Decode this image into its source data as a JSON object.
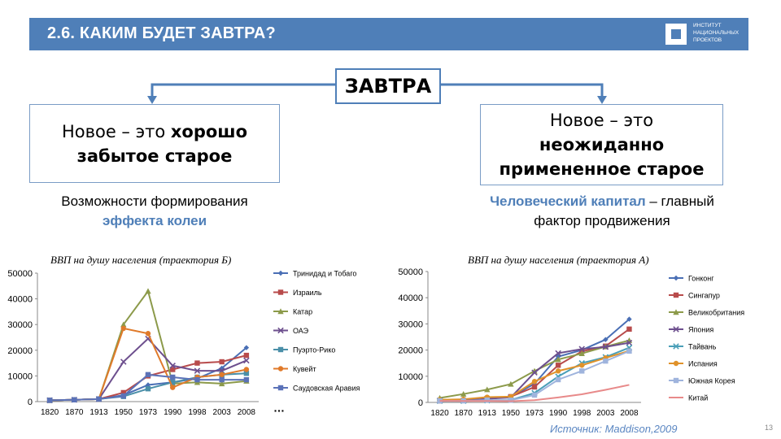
{
  "header": {
    "title": "2.6. КАКИМ БУДЕТ ЗАВТРА?",
    "logo_text": "ИНСТИТУТ\nНАЦИОНАЛЬНЫХ\nПРОЕКТОВ"
  },
  "center": {
    "label": "ЗАВТРА"
  },
  "left_box": {
    "line1": "Новое – это ",
    "line1_bold": "хорошо",
    "line2_bold": "забытое старое"
  },
  "right_box": {
    "line1": "Новое – это",
    "line2_bold": "неожиданно",
    "line3_bold": "примененное старое"
  },
  "left_sub": {
    "line1": "Возможности формирования",
    "accent": "эффекта колеи"
  },
  "right_sub": {
    "accent": "Человеческий капитал",
    "line1_rest": " – главный",
    "line2": "фактор продвижения"
  },
  "source": "Источник: Maddison,2009",
  "page_number": "13",
  "chart_data": [
    {
      "type": "line",
      "title": "ВВП на душу населения (траектория Б)",
      "categories": [
        "1820",
        "1870",
        "1913",
        "1950",
        "1973",
        "1990",
        "1998",
        "2003",
        "2008"
      ],
      "y_ticks": [
        "0",
        "10000",
        "20000",
        "30000",
        "40000",
        "50000"
      ],
      "ylim": [
        0,
        50000
      ],
      "legend_more": "…",
      "series": [
        {
          "name": "Тринидад и Тобаго",
          "color": "#4a6fb5",
          "marker": "diamond",
          "values": [
            500,
            700,
            1000,
            2500,
            6500,
            7500,
            9000,
            13000,
            21000
          ]
        },
        {
          "name": "Израиль",
          "color": "#b84b4b",
          "marker": "square",
          "values": [
            500,
            700,
            1000,
            3500,
            10000,
            12500,
            15000,
            15500,
            18000
          ]
        },
        {
          "name": "Катар",
          "color": "#8c9a4a",
          "marker": "triangle",
          "values": [
            500,
            700,
            1000,
            30000,
            43000,
            7000,
            7500,
            7000,
            8000
          ]
        },
        {
          "name": "ОАЭ",
          "color": "#6d4f8e",
          "marker": "x",
          "values": [
            500,
            700,
            1000,
            15500,
            24500,
            14000,
            12000,
            12000,
            16000
          ]
        },
        {
          "name": "Пуэрто-Рико",
          "color": "#4a8fa8",
          "marker": "square",
          "values": [
            500,
            700,
            1000,
            2000,
            5000,
            7500,
            9500,
            10500,
            11000
          ]
        },
        {
          "name": "Кувейт",
          "color": "#e07a2a",
          "marker": "circle",
          "values": [
            500,
            700,
            1000,
            28500,
            26500,
            5500,
            9500,
            10500,
            12500
          ]
        },
        {
          "name": "Саудовская Аравия",
          "color": "#5b72b8",
          "marker": "square",
          "values": [
            500,
            700,
            1000,
            2200,
            10500,
            9500,
            8500,
            8500,
            8500
          ]
        }
      ]
    },
    {
      "type": "line",
      "title": "ВВП на душу населения (траектория А)",
      "categories": [
        "1820",
        "1870",
        "1913",
        "1950",
        "1973",
        "1990",
        "1998",
        "2003",
        "2008"
      ],
      "y_ticks": [
        "0",
        "10000",
        "20000",
        "30000",
        "40000",
        "50000"
      ],
      "ylim": [
        0,
        50000
      ],
      "series": [
        {
          "name": "Гонконг",
          "color": "#4a6fb5",
          "marker": "diamond",
          "values": [
            600,
            700,
            1300,
            2200,
            7100,
            17500,
            20000,
            24000,
            31800
          ]
        },
        {
          "name": "Сингапур",
          "color": "#b84b4b",
          "marker": "square",
          "values": [
            600,
            700,
            1300,
            2200,
            5900,
            14200,
            19500,
            21500,
            28000
          ]
        },
        {
          "name": "Великобритания",
          "color": "#8c9a4a",
          "marker": "triangle",
          "values": [
            1700,
            3200,
            4900,
            7000,
            12000,
            16400,
            18700,
            21300,
            23700
          ]
        },
        {
          "name": "Япония",
          "color": "#6d4f8e",
          "marker": "x",
          "values": [
            700,
            700,
            1400,
            1900,
            11400,
            18800,
            20400,
            21200,
            22800
          ]
        },
        {
          "name": "Тайвань",
          "color": "#4a9fb8",
          "marker": "x",
          "values": [
            550,
            550,
            750,
            900,
            3600,
            9900,
            15000,
            17300,
            20900
          ]
        },
        {
          "name": "Испания",
          "color": "#e0922a",
          "marker": "circle",
          "values": [
            1000,
            1200,
            2000,
            2200,
            8000,
            12000,
            14200,
            17000,
            19700
          ]
        },
        {
          "name": "Южная Корея",
          "color": "#9fb4dd",
          "marker": "square",
          "values": [
            600,
            600,
            900,
            850,
            2800,
            8700,
            12000,
            15800,
            19600
          ]
        },
        {
          "name": "Китай",
          "color": "#e88a8a",
          "marker": "none",
          "values": [
            600,
            550,
            550,
            450,
            850,
            1900,
            3100,
            4800,
            6700
          ]
        }
      ]
    }
  ]
}
